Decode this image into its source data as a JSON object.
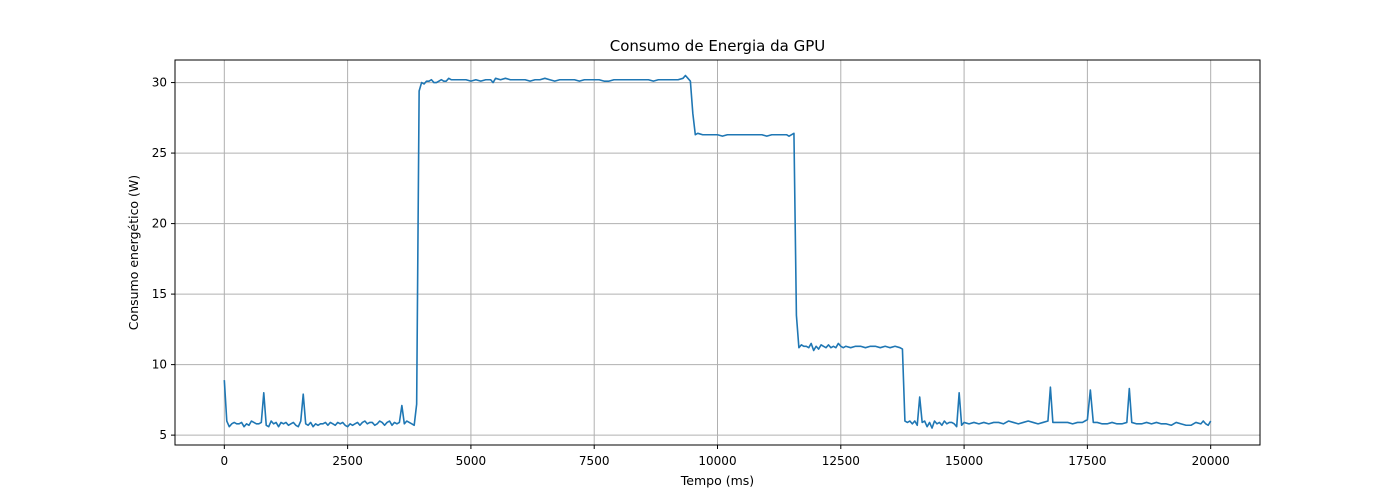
{
  "chart_data": {
    "type": "line",
    "title": "Consumo de Energia da GPU",
    "xlabel": "Tempo (ms)",
    "ylabel": "Consumo energético (W)",
    "xlim": [
      -1000,
      21000
    ],
    "ylim": [
      4.3,
      31.6
    ],
    "xticks": [
      0,
      2500,
      5000,
      7500,
      10000,
      12500,
      15000,
      17500,
      20000
    ],
    "yticks": [
      5,
      10,
      15,
      20,
      25,
      30
    ],
    "grid": true,
    "colors": {
      "line": "#1f77b4",
      "grid": "#b0b0b0"
    },
    "series": [
      {
        "name": "",
        "points": [
          [
            0,
            8.9
          ],
          [
            50,
            6.0
          ],
          [
            100,
            5.6
          ],
          [
            150,
            5.8
          ],
          [
            200,
            5.9
          ],
          [
            250,
            5.8
          ],
          [
            300,
            5.8
          ],
          [
            350,
            5.9
          ],
          [
            400,
            5.6
          ],
          [
            450,
            5.8
          ],
          [
            500,
            5.7
          ],
          [
            550,
            6.0
          ],
          [
            600,
            5.9
          ],
          [
            650,
            5.8
          ],
          [
            700,
            5.8
          ],
          [
            750,
            5.9
          ],
          [
            800,
            8.0
          ],
          [
            850,
            5.7
          ],
          [
            900,
            5.6
          ],
          [
            950,
            6.0
          ],
          [
            1000,
            5.8
          ],
          [
            1050,
            5.9
          ],
          [
            1100,
            5.6
          ],
          [
            1150,
            5.9
          ],
          [
            1200,
            5.8
          ],
          [
            1250,
            5.9
          ],
          [
            1300,
            5.7
          ],
          [
            1350,
            5.8
          ],
          [
            1400,
            5.9
          ],
          [
            1450,
            5.7
          ],
          [
            1500,
            5.6
          ],
          [
            1550,
            6.0
          ],
          [
            1600,
            7.9
          ],
          [
            1650,
            5.8
          ],
          [
            1700,
            5.7
          ],
          [
            1750,
            5.9
          ],
          [
            1800,
            5.6
          ],
          [
            1850,
            5.8
          ],
          [
            1900,
            5.7
          ],
          [
            1950,
            5.8
          ],
          [
            2000,
            5.8
          ],
          [
            2050,
            5.9
          ],
          [
            2100,
            5.7
          ],
          [
            2150,
            5.9
          ],
          [
            2200,
            5.8
          ],
          [
            2250,
            5.7
          ],
          [
            2300,
            5.9
          ],
          [
            2350,
            5.8
          ],
          [
            2400,
            5.9
          ],
          [
            2450,
            5.7
          ],
          [
            2500,
            5.6
          ],
          [
            2550,
            5.8
          ],
          [
            2600,
            5.7
          ],
          [
            2650,
            5.8
          ],
          [
            2700,
            5.9
          ],
          [
            2750,
            5.7
          ],
          [
            2800,
            5.9
          ],
          [
            2850,
            6.0
          ],
          [
            2900,
            5.8
          ],
          [
            2950,
            5.9
          ],
          [
            3000,
            5.9
          ],
          [
            3050,
            5.7
          ],
          [
            3100,
            5.8
          ],
          [
            3150,
            6.0
          ],
          [
            3200,
            5.9
          ],
          [
            3250,
            5.7
          ],
          [
            3300,
            5.9
          ],
          [
            3350,
            6.0
          ],
          [
            3400,
            5.7
          ],
          [
            3450,
            5.9
          ],
          [
            3500,
            5.8
          ],
          [
            3550,
            5.9
          ],
          [
            3600,
            7.1
          ],
          [
            3650,
            5.8
          ],
          [
            3700,
            6.0
          ],
          [
            3750,
            5.9
          ],
          [
            3800,
            5.8
          ],
          [
            3850,
            5.7
          ],
          [
            3900,
            7.2
          ],
          [
            3950,
            29.4
          ],
          [
            4000,
            30.0
          ],
          [
            4050,
            29.9
          ],
          [
            4100,
            30.1
          ],
          [
            4150,
            30.1
          ],
          [
            4200,
            30.2
          ],
          [
            4250,
            30.0
          ],
          [
            4300,
            30.0
          ],
          [
            4350,
            30.1
          ],
          [
            4400,
            30.2
          ],
          [
            4450,
            30.1
          ],
          [
            4500,
            30.1
          ],
          [
            4550,
            30.3
          ],
          [
            4600,
            30.2
          ],
          [
            4650,
            30.2
          ],
          [
            4700,
            30.2
          ],
          [
            4800,
            30.2
          ],
          [
            4900,
            30.2
          ],
          [
            5000,
            30.1
          ],
          [
            5100,
            30.2
          ],
          [
            5200,
            30.1
          ],
          [
            5300,
            30.2
          ],
          [
            5400,
            30.2
          ],
          [
            5450,
            30.0
          ],
          [
            5500,
            30.3
          ],
          [
            5600,
            30.2
          ],
          [
            5700,
            30.3
          ],
          [
            5800,
            30.2
          ],
          [
            5900,
            30.2
          ],
          [
            6000,
            30.2
          ],
          [
            6100,
            30.2
          ],
          [
            6200,
            30.1
          ],
          [
            6300,
            30.2
          ],
          [
            6400,
            30.2
          ],
          [
            6500,
            30.3
          ],
          [
            6600,
            30.2
          ],
          [
            6700,
            30.1
          ],
          [
            6800,
            30.2
          ],
          [
            6900,
            30.2
          ],
          [
            7000,
            30.2
          ],
          [
            7100,
            30.2
          ],
          [
            7200,
            30.1
          ],
          [
            7300,
            30.2
          ],
          [
            7400,
            30.2
          ],
          [
            7500,
            30.2
          ],
          [
            7600,
            30.2
          ],
          [
            7700,
            30.1
          ],
          [
            7800,
            30.1
          ],
          [
            7900,
            30.2
          ],
          [
            8000,
            30.2
          ],
          [
            8100,
            30.2
          ],
          [
            8200,
            30.2
          ],
          [
            8300,
            30.2
          ],
          [
            8400,
            30.2
          ],
          [
            8500,
            30.2
          ],
          [
            8600,
            30.2
          ],
          [
            8700,
            30.1
          ],
          [
            8800,
            30.2
          ],
          [
            8900,
            30.2
          ],
          [
            9000,
            30.2
          ],
          [
            9100,
            30.2
          ],
          [
            9200,
            30.2
          ],
          [
            9300,
            30.3
          ],
          [
            9350,
            30.5
          ],
          [
            9400,
            30.3
          ],
          [
            9450,
            30.1
          ],
          [
            9500,
            27.8
          ],
          [
            9550,
            26.3
          ],
          [
            9600,
            26.4
          ],
          [
            9700,
            26.3
          ],
          [
            9800,
            26.3
          ],
          [
            9900,
            26.3
          ],
          [
            10000,
            26.3
          ],
          [
            10100,
            26.2
          ],
          [
            10200,
            26.3
          ],
          [
            10300,
            26.3
          ],
          [
            10400,
            26.3
          ],
          [
            10500,
            26.3
          ],
          [
            10600,
            26.3
          ],
          [
            10700,
            26.3
          ],
          [
            10800,
            26.3
          ],
          [
            10900,
            26.3
          ],
          [
            11000,
            26.2
          ],
          [
            11100,
            26.3
          ],
          [
            11200,
            26.3
          ],
          [
            11300,
            26.3
          ],
          [
            11400,
            26.3
          ],
          [
            11450,
            26.2
          ],
          [
            11550,
            26.4
          ],
          [
            11600,
            13.5
          ],
          [
            11650,
            11.2
          ],
          [
            11700,
            11.4
          ],
          [
            11750,
            11.3
          ],
          [
            11800,
            11.3
          ],
          [
            11850,
            11.2
          ],
          [
            11900,
            11.5
          ],
          [
            11950,
            11.0
          ],
          [
            12000,
            11.3
          ],
          [
            12050,
            11.1
          ],
          [
            12100,
            11.4
          ],
          [
            12150,
            11.3
          ],
          [
            12200,
            11.2
          ],
          [
            12250,
            11.4
          ],
          [
            12300,
            11.2
          ],
          [
            12350,
            11.3
          ],
          [
            12400,
            11.2
          ],
          [
            12450,
            11.5
          ],
          [
            12500,
            11.3
          ],
          [
            12550,
            11.2
          ],
          [
            12600,
            11.3
          ],
          [
            12700,
            11.2
          ],
          [
            12800,
            11.3
          ],
          [
            12900,
            11.3
          ],
          [
            13000,
            11.2
          ],
          [
            13100,
            11.3
          ],
          [
            13200,
            11.3
          ],
          [
            13300,
            11.2
          ],
          [
            13400,
            11.3
          ],
          [
            13500,
            11.2
          ],
          [
            13600,
            11.3
          ],
          [
            13700,
            11.2
          ],
          [
            13750,
            11.1
          ],
          [
            13800,
            6.0
          ],
          [
            13850,
            5.9
          ],
          [
            13900,
            6.0
          ],
          [
            13950,
            5.8
          ],
          [
            14000,
            6.0
          ],
          [
            14050,
            5.7
          ],
          [
            14100,
            7.7
          ],
          [
            14150,
            5.9
          ],
          [
            14200,
            6.0
          ],
          [
            14250,
            5.6
          ],
          [
            14300,
            5.9
          ],
          [
            14350,
            5.5
          ],
          [
            14400,
            6.0
          ],
          [
            14450,
            5.8
          ],
          [
            14500,
            5.9
          ],
          [
            14550,
            5.7
          ],
          [
            14600,
            6.0
          ],
          [
            14650,
            5.8
          ],
          [
            14700,
            5.9
          ],
          [
            14750,
            5.9
          ],
          [
            14800,
            5.8
          ],
          [
            14850,
            5.6
          ],
          [
            14900,
            8.0
          ],
          [
            14950,
            5.7
          ],
          [
            15000,
            5.9
          ],
          [
            15100,
            5.8
          ],
          [
            15200,
            5.9
          ],
          [
            15300,
            5.8
          ],
          [
            15400,
            5.9
          ],
          [
            15500,
            5.8
          ],
          [
            15600,
            5.9
          ],
          [
            15700,
            5.9
          ],
          [
            15800,
            5.8
          ],
          [
            15900,
            6.0
          ],
          [
            16000,
            5.9
          ],
          [
            16100,
            5.8
          ],
          [
            16200,
            5.9
          ],
          [
            16300,
            6.0
          ],
          [
            16400,
            5.9
          ],
          [
            16500,
            5.8
          ],
          [
            16600,
            5.9
          ],
          [
            16700,
            6.0
          ],
          [
            16750,
            8.4
          ],
          [
            16800,
            5.9
          ],
          [
            16900,
            5.9
          ],
          [
            17000,
            5.9
          ],
          [
            17100,
            5.9
          ],
          [
            17200,
            5.8
          ],
          [
            17300,
            5.9
          ],
          [
            17400,
            5.9
          ],
          [
            17500,
            6.1
          ],
          [
            17560,
            8.2
          ],
          [
            17620,
            5.9
          ],
          [
            17700,
            5.9
          ],
          [
            17800,
            5.8
          ],
          [
            17900,
            5.8
          ],
          [
            18000,
            5.9
          ],
          [
            18100,
            5.8
          ],
          [
            18200,
            5.8
          ],
          [
            18300,
            5.9
          ],
          [
            18350,
            8.3
          ],
          [
            18400,
            5.9
          ],
          [
            18500,
            5.8
          ],
          [
            18600,
            5.8
          ],
          [
            18700,
            5.9
          ],
          [
            18800,
            5.8
          ],
          [
            18900,
            5.9
          ],
          [
            19000,
            5.8
          ],
          [
            19100,
            5.8
          ],
          [
            19200,
            5.7
          ],
          [
            19300,
            5.9
          ],
          [
            19400,
            5.8
          ],
          [
            19500,
            5.7
          ],
          [
            19600,
            5.7
          ],
          [
            19700,
            5.9
          ],
          [
            19800,
            5.8
          ],
          [
            19850,
            6.0
          ],
          [
            19900,
            5.8
          ],
          [
            19950,
            5.7
          ],
          [
            20000,
            6.0
          ]
        ]
      }
    ]
  }
}
